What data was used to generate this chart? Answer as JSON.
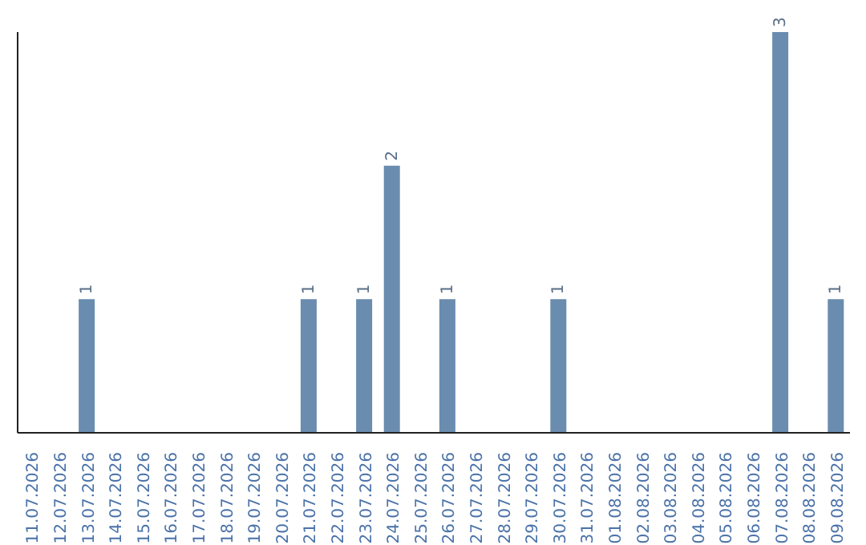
{
  "chart_data": {
    "type": "bar",
    "categories": [
      "11.07.2026",
      "12.07.2026",
      "13.07.2026",
      "14.07.2026",
      "15.07.2026",
      "16.07.2026",
      "17.07.2026",
      "18.07.2026",
      "19.07.2026",
      "20.07.2026",
      "21.07.2026",
      "22.07.2026",
      "23.07.2026",
      "24.07.2026",
      "25.07.2026",
      "26.07.2026",
      "27.07.2026",
      "28.07.2026",
      "29.07.2026",
      "30.07.2026",
      "31.07.2026",
      "01.08.2026",
      "02.08.2026",
      "03.08.2026",
      "04.08.2026",
      "05.08.2026",
      "06.08.2026",
      "07.08.2026",
      "08.08.2026",
      "09.08.2026"
    ],
    "values": [
      0,
      0,
      1,
      0,
      0,
      0,
      0,
      0,
      0,
      0,
      1,
      0,
      1,
      2,
      0,
      1,
      0,
      0,
      0,
      1,
      0,
      0,
      0,
      0,
      0,
      0,
      0,
      3,
      0,
      1
    ],
    "value_labels": [
      null,
      null,
      "1",
      null,
      null,
      null,
      null,
      null,
      null,
      null,
      "1",
      null,
      "1",
      "2",
      null,
      "1",
      null,
      null,
      null,
      "1",
      null,
      null,
      null,
      null,
      null,
      null,
      null,
      "3",
      null,
      "1"
    ],
    "color": "#6a8caf"
  }
}
